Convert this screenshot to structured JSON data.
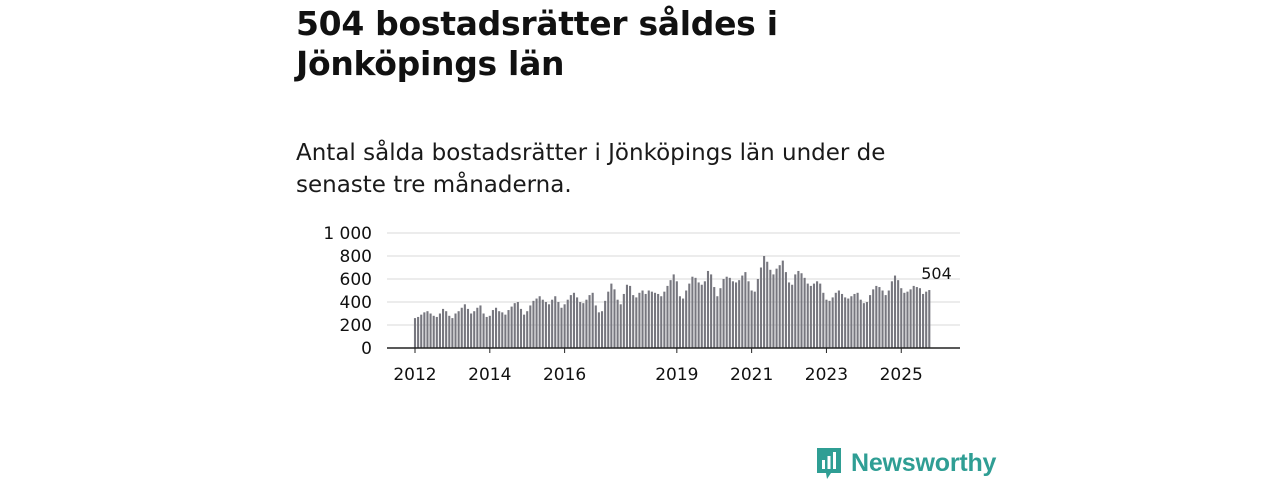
{
  "header": {
    "title": "504 bostadsrätter såldes i Jönköpings län",
    "subtitle": "Antal sålda bostadsrätter i Jönköpings län under de senaste tre månaderna."
  },
  "brand": {
    "name": "Newsworthy",
    "color": "#2f9e94"
  },
  "colors": {
    "bar": "#77777f",
    "highlight": "#2a9d93",
    "grid": "#d9d9d9",
    "axis": "#222222"
  },
  "chart_data": {
    "type": "bar",
    "title": "504 bostadsrätter såldes i Jönköpings län",
    "xlabel": "",
    "ylabel": "",
    "ylim": [
      0,
      1000
    ],
    "yticks": [
      0,
      200,
      400,
      600,
      800,
      1000
    ],
    "ytick_labels": [
      "0",
      "200",
      "400",
      "600",
      "800",
      "1 000"
    ],
    "xticks": [
      2012,
      2014,
      2016,
      2019,
      2021,
      2023,
      2025
    ],
    "xtick_labels": [
      "2012",
      "2014",
      "2016",
      "2019",
      "2021",
      "2023",
      "2025"
    ],
    "x_start": 2012,
    "x_step_years": 0.0833333,
    "values": [
      260,
      270,
      290,
      310,
      320,
      300,
      280,
      270,
      300,
      340,
      320,
      280,
      260,
      300,
      320,
      350,
      380,
      340,
      300,
      320,
      350,
      370,
      300,
      270,
      280,
      330,
      350,
      320,
      310,
      290,
      330,
      360,
      390,
      400,
      340,
      290,
      320,
      370,
      410,
      430,
      450,
      420,
      400,
      380,
      420,
      450,
      400,
      350,
      380,
      420,
      460,
      480,
      440,
      400,
      390,
      420,
      460,
      480,
      370,
      310,
      320,
      410,
      490,
      560,
      510,
      420,
      380,
      470,
      550,
      540,
      460,
      440,
      480,
      500,
      470,
      500,
      490,
      480,
      470,
      450,
      490,
      540,
      590,
      640,
      580,
      450,
      430,
      500,
      560,
      620,
      610,
      570,
      550,
      580,
      670,
      640,
      530,
      450,
      520,
      600,
      620,
      610,
      580,
      570,
      590,
      630,
      660,
      580,
      500,
      490,
      600,
      700,
      800,
      750,
      680,
      640,
      690,
      720,
      760,
      660,
      570,
      550,
      640,
      670,
      650,
      610,
      560,
      540,
      560,
      580,
      560,
      480,
      420,
      410,
      440,
      480,
      500,
      470,
      440,
      430,
      450,
      470,
      480,
      420,
      390,
      400,
      460,
      510,
      540,
      530,
      500,
      460,
      500,
      580,
      630,
      590,
      520,
      480,
      490,
      510,
      540,
      530,
      520,
      470,
      490,
      504
    ],
    "highlight_index": 167,
    "annotation": {
      "label": "504",
      "value": 504
    }
  }
}
